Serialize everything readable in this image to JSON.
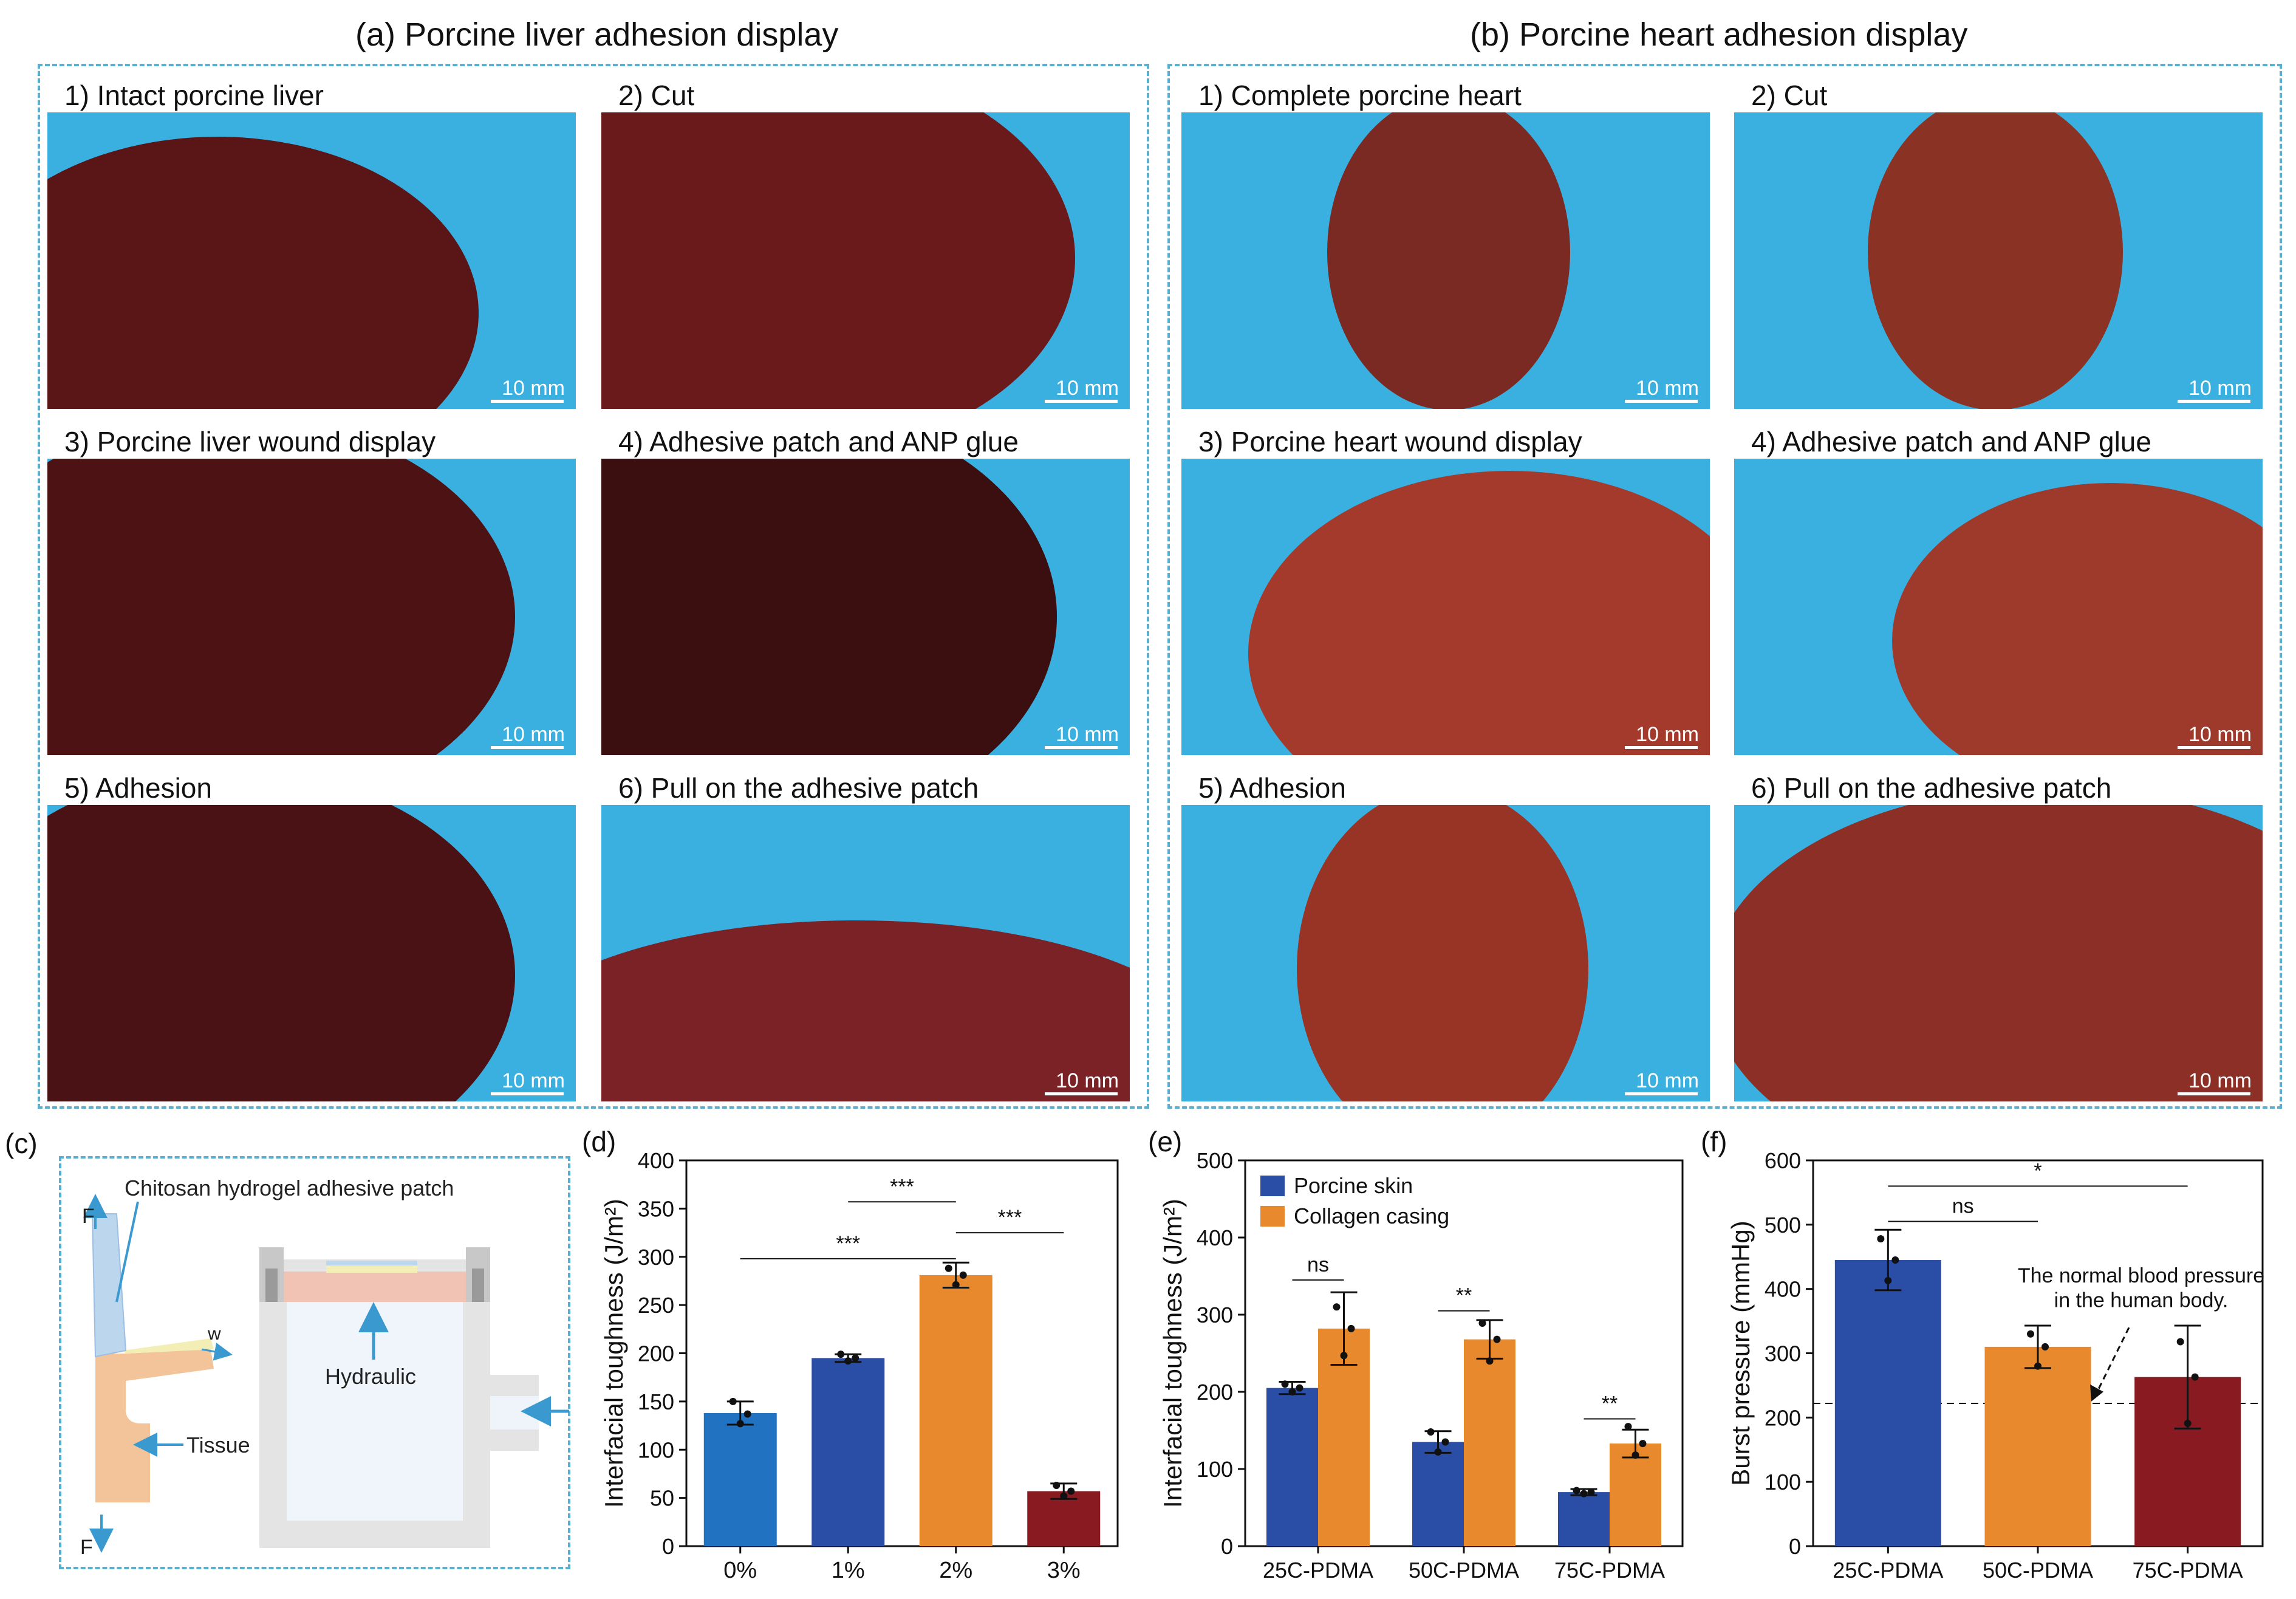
{
  "panel_a": {
    "title": "(a) Porcine liver adhesion display",
    "photos": [
      {
        "label": "1) Intact porcine liver",
        "scale": "10 mm"
      },
      {
        "label": "2) Cut",
        "scale": "10 mm"
      },
      {
        "label": "3) Porcine liver wound display",
        "scale": "10 mm"
      },
      {
        "label": "4) Adhesive patch and ANP glue",
        "scale": "10 mm"
      },
      {
        "label": "5) Adhesion",
        "scale": "10 mm"
      },
      {
        "label": "6) Pull on the adhesive patch",
        "scale": "10 mm"
      }
    ]
  },
  "panel_b": {
    "title": "(b) Porcine heart adhesion display",
    "photos": [
      {
        "label": "1) Complete porcine heart",
        "scale": "10 mm"
      },
      {
        "label": "2) Cut",
        "scale": "10 mm"
      },
      {
        "label": "3) Porcine heart wound display",
        "scale": "10 mm"
      },
      {
        "label": "4) Adhesive patch and ANP glue",
        "scale": "10 mm"
      },
      {
        "label": "5) Adhesion",
        "scale": "10 mm"
      },
      {
        "label": "6) Pull on the adhesive patch",
        "scale": "10 mm"
      }
    ]
  },
  "panel_c": {
    "tag": "(c)",
    "patch_label": "Chitosan hydrogel adhesive patch",
    "tissue_label": "Tissue",
    "hydraulic_label": "Hydraulic",
    "force_top": "F",
    "force_bottom": "F",
    "width_label": "w",
    "colors": {
      "patch": "#bcd6ee",
      "tissue": "#f3c49a",
      "chamber": "#e4e4e4",
      "arrow": "#3a9ad0"
    }
  },
  "chart_data": [
    {
      "tag": "(d)",
      "type": "bar",
      "categories": [
        "0%",
        "1%",
        "2%",
        "3%"
      ],
      "values": [
        138,
        195,
        281,
        57
      ],
      "errors": [
        12,
        4,
        13,
        8
      ],
      "points": [
        [
          150,
          137,
          127
        ],
        [
          199,
          195,
          192
        ],
        [
          288,
          281,
          271
        ],
        [
          63,
          57,
          52
        ]
      ],
      "colors": [
        "#2172c0",
        "#2a4ea6",
        "#e8892d",
        "#8a1a22"
      ],
      "ylabel": "Interfacial toughness (J/m²)",
      "ylim": [
        0,
        400
      ],
      "yticks": [
        0,
        50,
        100,
        150,
        200,
        250,
        300,
        350,
        400
      ],
      "significance": [
        {
          "from": 1,
          "to": 2,
          "label": "***",
          "y": 357
        },
        {
          "from": 2,
          "to": 3,
          "label": "***",
          "y": 325
        },
        {
          "from": 0,
          "to": 2,
          "label": "***",
          "y": 298
        }
      ]
    },
    {
      "tag": "(e)",
      "type": "bar",
      "categories": [
        "25C-PDMA",
        "50C-PDMA",
        "75C-PDMA"
      ],
      "series": [
        {
          "name": "Porcine skin",
          "color": "#2a4ea6",
          "values": [
            205,
            135,
            70
          ],
          "errors": [
            8,
            14,
            4
          ],
          "points": [
            [
              210,
              205,
              200
            ],
            [
              148,
              135,
              122
            ],
            [
              72,
              70,
              68
            ]
          ]
        },
        {
          "name": "Collagen casing",
          "color": "#e8892d",
          "values": [
            282,
            268,
            133
          ],
          "errors": [
            47,
            25,
            18
          ],
          "points": [
            [
              310,
              282,
              247
            ],
            [
              289,
              268,
              240
            ],
            [
              155,
              133,
              118
            ]
          ]
        }
      ],
      "ylabel": "Interfacial toughness (J/m²)",
      "ylim": [
        0,
        500
      ],
      "yticks": [
        0,
        100,
        200,
        300,
        400,
        500
      ],
      "legend": "top-left",
      "significance": [
        {
          "group": 0,
          "label": "ns",
          "y": 345
        },
        {
          "group": 1,
          "label": "**",
          "y": 305
        },
        {
          "group": 2,
          "label": "**",
          "y": 165
        }
      ]
    },
    {
      "tag": "(f)",
      "type": "bar",
      "categories": [
        "25C-PDMA",
        "50C-PDMA",
        "75C-PDMA"
      ],
      "values": [
        445,
        310,
        263
      ],
      "errors": [
        47,
        33,
        80
      ],
      "points": [
        [
          478,
          445,
          413
        ],
        [
          330,
          310,
          280
        ],
        [
          318,
          263,
          191
        ]
      ],
      "colors": [
        "#2a4ea6",
        "#e8892d",
        "#8a1a22"
      ],
      "ylabel": "Burst pressure (mmHg)",
      "ylim": [
        0,
        600
      ],
      "yticks": [
        0,
        100,
        200,
        300,
        400,
        500,
        600
      ],
      "reference_line": 222,
      "annotation": [
        "The normal blood pressure",
        "in the human body."
      ],
      "significance": [
        {
          "from": 0,
          "to": 1,
          "label": "ns",
          "y": 505
        },
        {
          "from": 0,
          "to": 2,
          "label": "*",
          "y": 560
        }
      ]
    }
  ]
}
